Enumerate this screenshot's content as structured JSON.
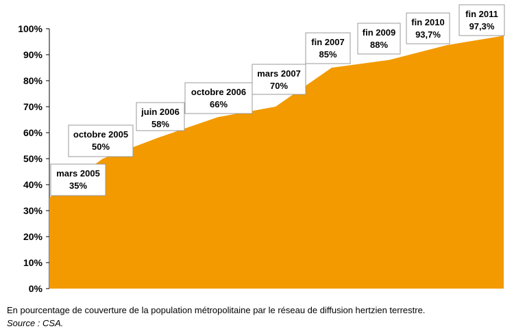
{
  "chart_data": {
    "type": "area",
    "color": "#F29A00",
    "ylim": [
      0,
      100
    ],
    "yticks": [
      "0%",
      "10%",
      "20%",
      "30%",
      "40%",
      "50%",
      "60%",
      "70%",
      "80%",
      "90%",
      "100%"
    ],
    "x": [
      "mars 2005",
      "octobre 2005",
      "juin 2006",
      "octobre 2006",
      "mars 2007",
      "fin 2007",
      "fin 2009",
      "fin 2010",
      "fin 2011"
    ],
    "values": [
      35,
      50,
      58,
      66,
      70,
      85,
      88,
      93.7,
      97.3
    ],
    "labels": [
      {
        "date": "mars 2005",
        "value": "35%"
      },
      {
        "date": "octobre 2005",
        "value": "50%"
      },
      {
        "date": "juin 2006",
        "value": "58%"
      },
      {
        "date": "octobre 2006",
        "value": "66%"
      },
      {
        "date": "mars 2007",
        "value": "70%"
      },
      {
        "date": "fin 2007",
        "value": "85%"
      },
      {
        "date": "fin 2009",
        "value": "88%"
      },
      {
        "date": "fin 2010",
        "value": "93,7%"
      },
      {
        "date": "fin 2011",
        "value": "97,3%"
      }
    ]
  },
  "caption": {
    "note": "En pourcentage de couverture de la population métropolitaine par le réseau de diffusion hertzien terrestre.",
    "source": "Source : CSA."
  }
}
